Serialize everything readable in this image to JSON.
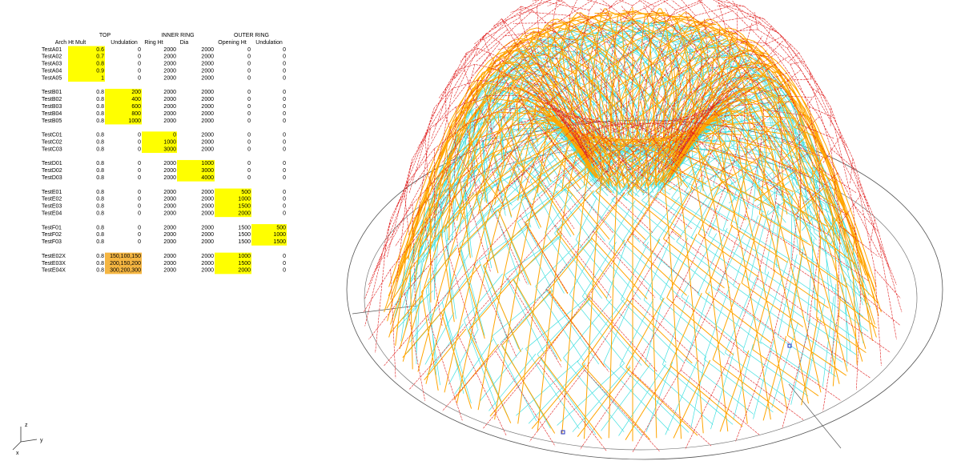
{
  "table": {
    "groups": [
      "TOP",
      "INNER RING",
      "OUTER RING"
    ],
    "columns": [
      "Arch Ht Mult",
      "Undulation",
      "Ring Ht",
      "Dia",
      "Opening Ht",
      "Undulation"
    ],
    "sections": [
      {
        "highlight": [
          {
            "col": 1,
            "color": "#ffff00"
          }
        ],
        "rows": [
          [
            "TestA01",
            "0.6",
            "0",
            "2000",
            "2000",
            "0",
            "0"
          ],
          [
            "TestA02",
            "0.7",
            "0",
            "2000",
            "2000",
            "0",
            "0"
          ],
          [
            "TestA03",
            "0.8",
            "0",
            "2000",
            "2000",
            "0",
            "0"
          ],
          [
            "TestA04",
            "0.9",
            "0",
            "2000",
            "2000",
            "0",
            "0"
          ],
          [
            "TestA05",
            "1",
            "0",
            "2000",
            "2000",
            "0",
            "0"
          ]
        ]
      },
      {
        "highlight": [
          {
            "col": 2,
            "color": "#ffff00"
          }
        ],
        "rows": [
          [
            "TestB01",
            "0.8",
            "200",
            "2000",
            "2000",
            "0",
            "0"
          ],
          [
            "TestB02",
            "0.8",
            "400",
            "2000",
            "2000",
            "0",
            "0"
          ],
          [
            "TestB03",
            "0.8",
            "600",
            "2000",
            "2000",
            "0",
            "0"
          ],
          [
            "TestB04",
            "0.8",
            "800",
            "2000",
            "2000",
            "0",
            "0"
          ],
          [
            "TestB05",
            "0.8",
            "1000",
            "2000",
            "2000",
            "0",
            "0"
          ]
        ]
      },
      {
        "highlight": [
          {
            "col": 3,
            "color": "#ffff00"
          }
        ],
        "rows": [
          [
            "TestC01",
            "0.8",
            "0",
            "0",
            "2000",
            "0",
            "0"
          ],
          [
            "TestC02",
            "0.8",
            "0",
            "1000",
            "2000",
            "0",
            "0"
          ],
          [
            "TestC03",
            "0.8",
            "0",
            "3000",
            "2000",
            "0",
            "0"
          ]
        ]
      },
      {
        "highlight": [
          {
            "col": 4,
            "color": "#ffff00"
          }
        ],
        "rows": [
          [
            "TestD01",
            "0.8",
            "0",
            "2000",
            "1000",
            "0",
            "0"
          ],
          [
            "TestD02",
            "0.8",
            "0",
            "2000",
            "3000",
            "0",
            "0"
          ],
          [
            "TestD03",
            "0.8",
            "0",
            "2000",
            "4000",
            "0",
            "0"
          ]
        ]
      },
      {
        "highlight": [
          {
            "col": 5,
            "color": "#ffff00"
          }
        ],
        "rows": [
          [
            "TestE01",
            "0.8",
            "0",
            "2000",
            "2000",
            "500",
            "0"
          ],
          [
            "TestE02",
            "0.8",
            "0",
            "2000",
            "2000",
            "1000",
            "0"
          ],
          [
            "TestE03",
            "0.8",
            "0",
            "2000",
            "2000",
            "1500",
            "0"
          ],
          [
            "TestE04",
            "0.8",
            "0",
            "2000",
            "2000",
            "2000",
            "0"
          ]
        ]
      },
      {
        "highlight": [
          {
            "col": 6,
            "color": "#ffff00"
          }
        ],
        "rows": [
          [
            "TestF01",
            "0.8",
            "0",
            "2000",
            "2000",
            "1500",
            "500"
          ],
          [
            "TestF02",
            "0.8",
            "0",
            "2000",
            "2000",
            "1500",
            "1000"
          ],
          [
            "TestF03",
            "0.8",
            "0",
            "2000",
            "2000",
            "1500",
            "1500"
          ]
        ]
      },
      {
        "highlight": [
          {
            "col": 2,
            "color": "#f5b642"
          },
          {
            "col": 5,
            "color": "#ffff00"
          }
        ],
        "rows": [
          [
            "TestE02X",
            "0.8",
            "150,100,150",
            "2000",
            "2000",
            "1000",
            "0"
          ],
          [
            "TestE03X",
            "0.8",
            "200,150,200",
            "2000",
            "2000",
            "1500",
            "0"
          ],
          [
            "TestE04X",
            "0.8",
            "300,200,300",
            "2000",
            "2000",
            "2000",
            "0"
          ]
        ]
      }
    ]
  },
  "viewport": {
    "axes": [
      "z",
      "y",
      "x"
    ]
  }
}
